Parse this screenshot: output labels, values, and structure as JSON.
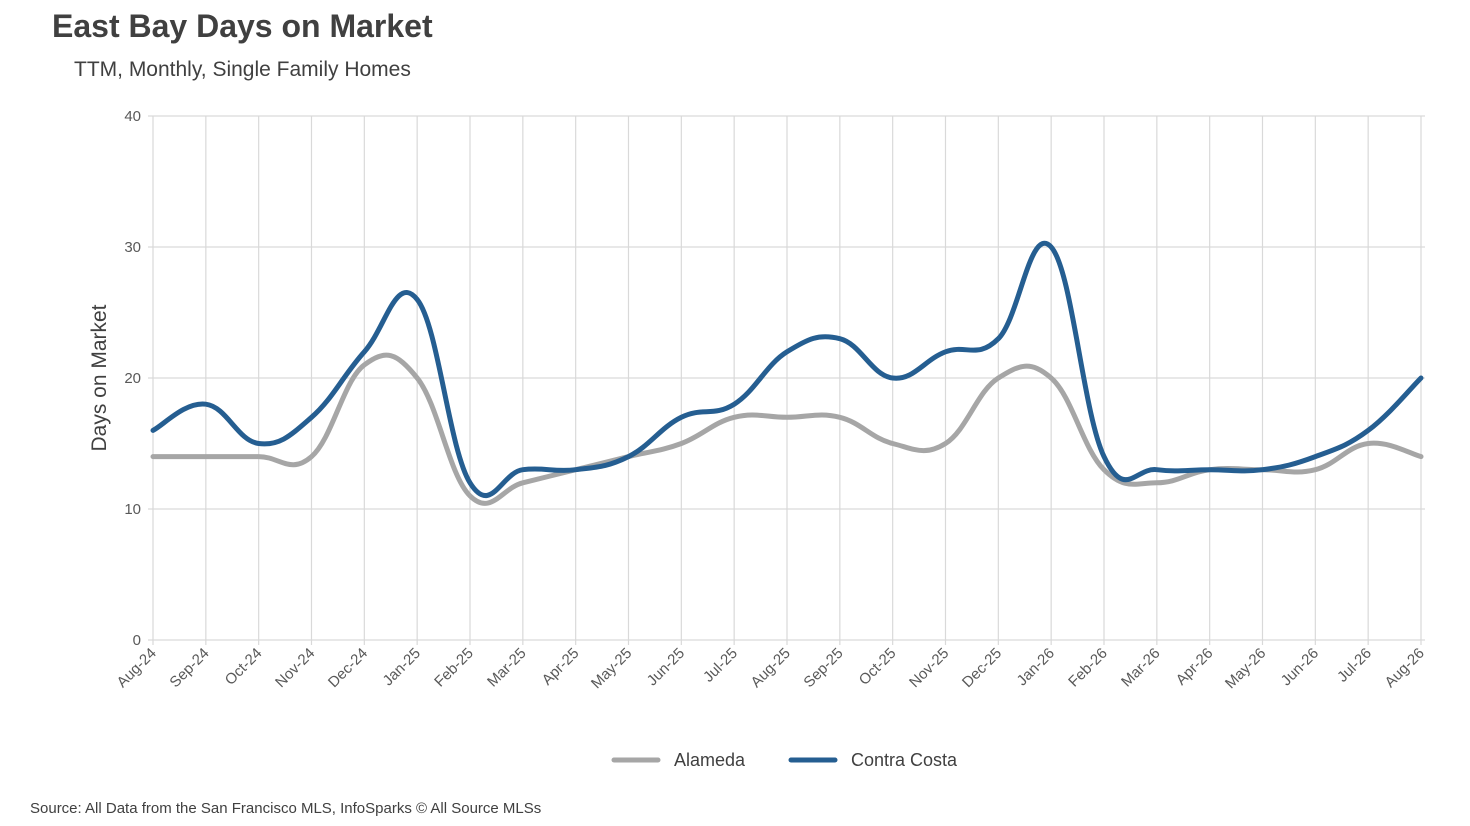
{
  "chart_data": {
    "type": "line",
    "title": "East Bay Days on Market",
    "subtitle": "TTM, Monthly, Single Family Homes",
    "ylabel": "Days on Market",
    "xlabel": "",
    "ylim": [
      0,
      40
    ],
    "yticks": [
      0,
      10,
      20,
      30,
      40
    ],
    "grid": true,
    "legend_position": "bottom",
    "categories": [
      "Aug-24",
      "Sep-24",
      "Oct-24",
      "Nov-24",
      "Dec-24",
      "Jan-25",
      "Feb-25",
      "Mar-25",
      "Apr-25",
      "May-25",
      "Jun-25",
      "Jul-25",
      "Aug-25",
      "Sep-25",
      "Oct-25",
      "Nov-25",
      "Dec-25",
      "Jan-26",
      "Feb-26",
      "Mar-26",
      "Apr-26",
      "May-26",
      "Jun-26",
      "Jul-26",
      "Aug-26"
    ],
    "series": [
      {
        "name": "Alameda",
        "color": "#a6a6a6",
        "values": [
          14,
          14,
          14,
          14,
          21,
          20,
          11,
          12,
          13,
          14,
          15,
          17,
          17,
          17,
          15,
          15,
          20,
          20,
          13,
          12,
          13,
          13,
          13,
          15,
          14
        ]
      },
      {
        "name": "Contra Costa",
        "color": "#255e91",
        "values": [
          16,
          18,
          15,
          17,
          22,
          26,
          12,
          13,
          13,
          14,
          17,
          18,
          22,
          23,
          20,
          22,
          23,
          30,
          14,
          13,
          13,
          13,
          14,
          16,
          20
        ]
      }
    ]
  },
  "source": "Source: All Data from the San Francisco MLS, InfoSparks © All Source MLSs"
}
